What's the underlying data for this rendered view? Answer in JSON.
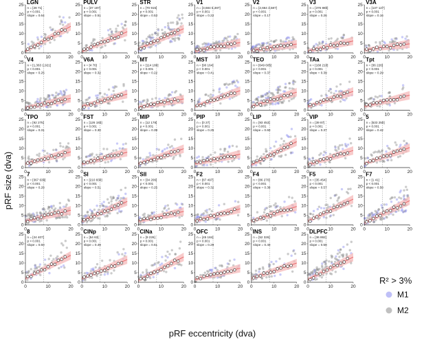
{
  "figure": {
    "xlabel": "pRF eccentricity (dva)",
    "ylabel": "pRF size (dva)",
    "legend": {
      "title": "R² > 3%",
      "items": [
        {
          "label": "M1",
          "color": "#8a8cf0"
        },
        {
          "label": "M2",
          "color": "#8c8c8c"
        }
      ]
    },
    "colors": {
      "fit": "#e8686a",
      "band": "#f6b9b9",
      "median": "#ffffff",
      "guide": "#999999"
    }
  },
  "chart_data": [
    {
      "type": "scatter",
      "title": "LGN",
      "n": "n = [28 71]",
      "p": "p < 0.001",
      "slope": "slope = 0.64",
      "xlim": [
        0,
        20
      ],
      "ylim": [
        0,
        25
      ],
      "xticks": [
        0,
        10,
        20
      ],
      "yticks": [
        0,
        5,
        10,
        15,
        20,
        25
      ],
      "fit": {
        "intercept": 1.0,
        "slope": 0.64
      }
    },
    {
      "type": "scatter",
      "title": "PULV",
      "n": "n = [37 187]",
      "p": "p < 0.001",
      "slope": "slope = 0.51",
      "xlim": [
        0,
        20
      ],
      "ylim": [
        0,
        25
      ],
      "xticks": [
        0,
        10,
        20
      ],
      "yticks": [
        0,
        5,
        10,
        15,
        20,
        25
      ],
      "fit": {
        "intercept": 0.8,
        "slope": 0.51
      }
    },
    {
      "type": "scatter",
      "title": "STR",
      "n": "n = [70 915]",
      "p": "p < 0.001",
      "slope": "slope = 0.53",
      "xlim": [
        0,
        20
      ],
      "ylim": [
        0,
        25
      ],
      "xticks": [
        0,
        10,
        20
      ],
      "yticks": [
        0,
        5,
        10,
        15,
        20,
        25
      ],
      "fit": {
        "intercept": 2.0,
        "slope": 0.53
      }
    },
    {
      "type": "scatter",
      "title": "V1",
      "n": "n = [3,684 5,387]",
      "p": "p < 0.001",
      "slope": "slope = 0.22",
      "xlim": [
        0,
        20
      ],
      "ylim": [
        0,
        25
      ],
      "xticks": [
        0,
        10,
        20
      ],
      "yticks": [
        0,
        5,
        10,
        15,
        20,
        25
      ],
      "fit": {
        "intercept": 1.0,
        "slope": 0.22
      }
    },
    {
      "type": "scatter",
      "title": "V2",
      "n": "n = [2,664 3,587]",
      "p": "p < 0.001",
      "slope": "slope = 0.17",
      "xlim": [
        0,
        20
      ],
      "ylim": [
        0,
        25
      ],
      "xticks": [
        0,
        10,
        20
      ],
      "yticks": [
        0,
        5,
        10,
        15,
        20,
        25
      ],
      "fit": {
        "intercept": 1.2,
        "slope": 0.17
      }
    },
    {
      "type": "scatter",
      "title": "V3",
      "n": "n = [376 880]",
      "p": "p < 0.001",
      "slope": "slope = 0.26",
      "xlim": [
        0,
        20
      ],
      "ylim": [
        0,
        25
      ],
      "xticks": [
        0,
        10,
        20
      ],
      "yticks": [
        0,
        5,
        10,
        15,
        20,
        25
      ],
      "fit": {
        "intercept": 1.0,
        "slope": 0.26
      }
    },
    {
      "type": "scatter",
      "title": "V3A",
      "n": "n = [137 127]",
      "p": "p < 0.001",
      "slope": "slope = 0.16",
      "xlim": [
        0,
        20
      ],
      "ylim": [
        0,
        25
      ],
      "xticks": [
        0,
        10,
        20
      ],
      "yticks": [
        0,
        5,
        10,
        15,
        20,
        25
      ],
      "fit": {
        "intercept": 1.5,
        "slope": 0.16
      }
    },
    {
      "type": "scatter",
      "title": "V4",
      "n": "n = [1,363 1,921]",
      "p": "p < 0.001",
      "slope": "slope = 0.25",
      "xlim": [
        0,
        20
      ],
      "ylim": [
        0,
        25
      ],
      "xticks": [
        0,
        10,
        20
      ],
      "yticks": [
        0,
        5,
        10,
        15,
        20,
        25
      ],
      "fit": {
        "intercept": 1.2,
        "slope": 0.25
      }
    },
    {
      "type": "scatter",
      "title": "V6A",
      "n": "n = [4 76]",
      "p": "p < 0.001",
      "slope": "slope = 0.32",
      "xlim": [
        0,
        20
      ],
      "ylim": [
        0,
        25
      ],
      "xticks": [
        0,
        10,
        20
      ],
      "yticks": [
        0,
        5,
        10,
        15,
        20,
        25
      ],
      "fit": {
        "intercept": 2.0,
        "slope": 0.32
      }
    },
    {
      "type": "scatter",
      "title": "MT",
      "n": "n = [114 186]",
      "p": "p < 0.001",
      "slope": "slope = 0.22",
      "xlim": [
        0,
        20
      ],
      "ylim": [
        0,
        25
      ],
      "xticks": [
        0,
        10,
        20
      ],
      "yticks": [
        0,
        5,
        10,
        15,
        20,
        25
      ],
      "fit": {
        "intercept": 1.5,
        "slope": 0.22
      }
    },
    {
      "type": "scatter",
      "title": "MST",
      "n": "n = [90 164]",
      "p": "p < 0.001",
      "slope": "slope = 0.41",
      "xlim": [
        0,
        20
      ],
      "ylim": [
        0,
        25
      ],
      "xticks": [
        0,
        10,
        20
      ],
      "yticks": [
        0,
        5,
        10,
        15,
        20,
        25
      ],
      "fit": {
        "intercept": 2.0,
        "slope": 0.41
      }
    },
    {
      "type": "scatter",
      "title": "TEO",
      "n": "n = [649 605]",
      "p": "p < 0.001",
      "slope": "slope = 0.37",
      "xlim": [
        0,
        20
      ],
      "ylim": [
        0,
        25
      ],
      "xticks": [
        0,
        10,
        20
      ],
      "yticks": [
        0,
        5,
        10,
        15,
        20,
        25
      ],
      "fit": {
        "intercept": 2.0,
        "slope": 0.37
      }
    },
    {
      "type": "scatter",
      "title": "TAa",
      "n": "n = [168 210]",
      "p": "p < 0.001",
      "slope": "slope = 0.39",
      "xlim": [
        0,
        20
      ],
      "ylim": [
        0,
        25
      ],
      "xticks": [
        0,
        10,
        20
      ],
      "yticks": [
        0,
        5,
        10,
        15,
        20,
        25
      ],
      "fit": {
        "intercept": 2.0,
        "slope": 0.39
      }
    },
    {
      "type": "scatter",
      "title": "Tpt",
      "n": "n = [36 226]",
      "p": "p < 0.001",
      "slope": "slope = 0.29",
      "xlim": [
        0,
        20
      ],
      "ylim": [
        0,
        25
      ],
      "xticks": [
        0,
        10,
        20
      ],
      "yticks": [
        0,
        5,
        10,
        15,
        20,
        25
      ],
      "fit": {
        "intercept": 2.0,
        "slope": 0.29
      }
    },
    {
      "type": "scatter",
      "title": "TPO",
      "n": "n = [92 275]",
      "p": "p < 0.001",
      "slope": "slope = 0.31",
      "xlim": [
        0,
        20
      ],
      "ylim": [
        0,
        25
      ],
      "xticks": [
        0,
        10,
        20
      ],
      "yticks": [
        0,
        5,
        10,
        15,
        20,
        25
      ],
      "fit": {
        "intercept": 2.0,
        "slope": 0.31
      }
    },
    {
      "type": "scatter",
      "title": "FST",
      "n": "n = [126 193]",
      "p": "p < 0.001",
      "slope": "slope = 0.30",
      "xlim": [
        0,
        20
      ],
      "ylim": [
        0,
        25
      ],
      "xticks": [
        0,
        10,
        20
      ],
      "yticks": [
        0,
        5,
        10,
        15,
        20,
        25
      ],
      "fit": {
        "intercept": 2.0,
        "slope": 0.3
      }
    },
    {
      "type": "scatter",
      "title": "MIP",
      "n": "n = [12 178]",
      "p": "p < 0.001",
      "slope": "slope = 0.39",
      "xlim": [
        0,
        20
      ],
      "ylim": [
        0,
        25
      ],
      "xticks": [
        0,
        10,
        20
      ],
      "yticks": [
        0,
        5,
        10,
        15,
        20,
        25
      ],
      "fit": {
        "intercept": 2.0,
        "slope": 0.39
      }
    },
    {
      "type": "scatter",
      "title": "PIP",
      "n": "n = [0 27]",
      "p": "p < 0.001",
      "slope": "slope = 0.25",
      "xlim": [
        0,
        20
      ],
      "ylim": [
        0,
        25
      ],
      "xticks": [
        0,
        10,
        20
      ],
      "yticks": [
        0,
        5,
        10,
        15,
        20,
        25
      ],
      "fit": {
        "intercept": 2.0,
        "slope": 0.25
      }
    },
    {
      "type": "scatter",
      "title": "LIP",
      "n": "n = [93 453]",
      "p": "p < 0.001",
      "slope": "slope = 0.60",
      "xlim": [
        0,
        20
      ],
      "ylim": [
        0,
        25
      ],
      "xticks": [
        0,
        10,
        20
      ],
      "yticks": [
        0,
        5,
        10,
        15,
        20,
        25
      ],
      "fit": {
        "intercept": 1.5,
        "slope": 0.6
      }
    },
    {
      "type": "scatter",
      "title": "VIP",
      "n": "n = [39 87]",
      "p": "p < 0.001",
      "slope": "slope = 0.37",
      "xlim": [
        0,
        20
      ],
      "ylim": [
        0,
        25
      ],
      "xticks": [
        0,
        10,
        20
      ],
      "yticks": [
        0,
        5,
        10,
        15,
        20,
        25
      ],
      "fit": {
        "intercept": 1.5,
        "slope": 0.37
      }
    },
    {
      "type": "scatter",
      "title": "5",
      "n": "n = [533 250]",
      "p": "p < 0.001",
      "slope": "slope = 0.42",
      "xlim": [
        0,
        20
      ],
      "ylim": [
        0,
        25
      ],
      "xticks": [
        0,
        10,
        20
      ],
      "yticks": [
        0,
        5,
        10,
        15,
        20,
        25
      ],
      "fit": {
        "intercept": 2.0,
        "slope": 0.42
      }
    },
    {
      "type": "scatter",
      "title": "7",
      "n": "n = [367 636]",
      "p": "p < 0.001",
      "slope": "slope = 0.28",
      "xlim": [
        0,
        20
      ],
      "ylim": [
        0,
        25
      ],
      "xticks": [
        0,
        10,
        20
      ],
      "yticks": [
        0,
        5,
        10,
        15,
        20,
        25
      ],
      "fit": {
        "intercept": 2.0,
        "slope": 0.28
      }
    },
    {
      "type": "scatter",
      "title": "SI",
      "n": "n = [210 830]",
      "p": "p < 0.001",
      "slope": "slope = 0.51",
      "xlim": [
        0,
        20
      ],
      "ylim": [
        0,
        25
      ],
      "xticks": [
        0,
        10,
        20
      ],
      "yticks": [
        0,
        5,
        10,
        15,
        20,
        25
      ],
      "fit": {
        "intercept": 2.0,
        "slope": 0.51
      }
    },
    {
      "type": "scatter",
      "title": "SII",
      "n": "n = [34 206]",
      "p": "p < 0.001",
      "slope": "slope = 0.25",
      "xlim": [
        0,
        20
      ],
      "ylim": [
        0,
        25
      ],
      "xticks": [
        0,
        10,
        20
      ],
      "yticks": [
        0,
        5,
        10,
        15,
        20,
        25
      ],
      "fit": {
        "intercept": 2.0,
        "slope": 0.25
      }
    },
    {
      "type": "scatter",
      "title": "F2",
      "n": "n = [87 497]",
      "p": "p < 0.001",
      "slope": "slope = 0.32",
      "xlim": [
        0,
        20
      ],
      "ylim": [
        0,
        25
      ],
      "xticks": [
        0,
        10,
        20
      ],
      "yticks": [
        0,
        5,
        10,
        15,
        20,
        25
      ],
      "fit": {
        "intercept": 2.0,
        "slope": 0.32
      }
    },
    {
      "type": "scatter",
      "title": "F4",
      "n": "n = [86 270]",
      "p": "p < 0.001",
      "slope": "slope = 0.38",
      "xlim": [
        0,
        20
      ],
      "ylim": [
        0,
        25
      ],
      "xticks": [
        0,
        10,
        20
      ],
      "yticks": [
        0,
        5,
        10,
        15,
        20,
        25
      ],
      "fit": {
        "intercept": 2.0,
        "slope": 0.38
      }
    },
    {
      "type": "scatter",
      "title": "F5",
      "n": "n = [35 454]",
      "p": "p < 0.001",
      "slope": "slope = 0.57",
      "xlim": [
        0,
        20
      ],
      "ylim": [
        0,
        25
      ],
      "xticks": [
        0,
        10,
        20
      ],
      "yticks": [
        0,
        5,
        10,
        15,
        20,
        25
      ],
      "fit": {
        "intercept": 2.0,
        "slope": 0.57
      }
    },
    {
      "type": "scatter",
      "title": "F7",
      "n": "n = [1 41]",
      "p": "p < 0.001",
      "slope": "slope = 0.58",
      "xlim": [
        0,
        20
      ],
      "ylim": [
        0,
        25
      ],
      "xticks": [
        0,
        10,
        20
      ],
      "yticks": [
        0,
        5,
        10,
        15,
        20,
        25
      ],
      "fit": {
        "intercept": 1.0,
        "slope": 0.58
      }
    },
    {
      "type": "scatter",
      "title": "8",
      "n": "n = [24 407]",
      "p": "p < 0.001",
      "slope": "slope = 0.60",
      "xlim": [
        0,
        20
      ],
      "ylim": [
        0,
        25
      ],
      "xticks": [
        0,
        10,
        20
      ],
      "yticks": [
        0,
        5,
        10,
        15,
        20,
        25
      ],
      "fit": {
        "intercept": 2.0,
        "slope": 0.6
      }
    },
    {
      "type": "scatter",
      "title": "CINp",
      "n": "n = [54 63]",
      "p": "p < 0.001",
      "slope": "slope = 0.49",
      "xlim": [
        0,
        20
      ],
      "ylim": [
        0,
        25
      ],
      "xticks": [
        0,
        10,
        20
      ],
      "yticks": [
        0,
        5,
        10,
        15,
        20,
        25
      ],
      "fit": {
        "intercept": 2.0,
        "slope": 0.49
      }
    },
    {
      "type": "scatter",
      "title": "CINa",
      "n": "n = [9 226]",
      "p": "p < 0.001",
      "slope": "slope = 0.61",
      "xlim": [
        0,
        20
      ],
      "ylim": [
        0,
        25
      ],
      "xticks": [
        0,
        10,
        20
      ],
      "yticks": [
        0,
        5,
        10,
        15,
        20,
        25
      ],
      "fit": {
        "intercept": 1.0,
        "slope": 0.61
      }
    },
    {
      "type": "scatter",
      "title": "OFC",
      "n": "n = [45 184]",
      "p": "p < 0.001",
      "slope": "slope = 0.29",
      "xlim": [
        0,
        20
      ],
      "ylim": [
        0,
        25
      ],
      "xticks": [
        0,
        10,
        20
      ],
      "yticks": [
        0,
        5,
        10,
        15,
        20,
        25
      ],
      "fit": {
        "intercept": 1.5,
        "slope": 0.29
      }
    },
    {
      "type": "scatter",
      "title": "INS",
      "n": "n = [52 326]",
      "p": "p < 0.001",
      "slope": "slope = 0.40",
      "xlim": [
        0,
        20
      ],
      "ylim": [
        0,
        25
      ],
      "xticks": [
        0,
        10,
        20
      ],
      "yticks": [
        0,
        5,
        10,
        15,
        20,
        25
      ],
      "fit": {
        "intercept": 2.0,
        "slope": 0.4
      }
    },
    {
      "type": "scatter",
      "title": "DLPFC",
      "n": "n = [36 892]",
      "p": "p < 0.001",
      "slope": "slope = 0.58",
      "xlim": [
        0,
        20
      ],
      "ylim": [
        0,
        25
      ],
      "xticks": [
        0,
        10,
        20
      ],
      "yticks": [
        0,
        5,
        10,
        15,
        20,
        25
      ],
      "fit": {
        "intercept": 1.5,
        "slope": 0.58
      }
    }
  ]
}
